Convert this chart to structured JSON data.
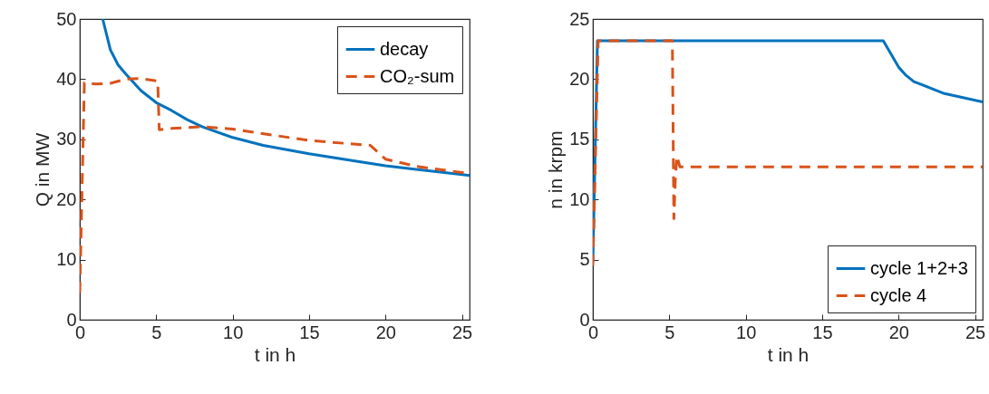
{
  "chart_data": [
    {
      "type": "line",
      "xlabel": "t in h",
      "ylabel": "Q in MW",
      "xlim": [
        0,
        25.5
      ],
      "xticks": [
        0,
        5,
        10,
        15,
        20,
        25
      ],
      "ylim": [
        0,
        50
      ],
      "yticks": [
        0,
        10,
        20,
        30,
        40,
        50
      ],
      "legend": "top right",
      "series": [
        {
          "name": "decay",
          "color": "#0072bd",
          "line_style": "solid",
          "x": [
            1.5,
            2,
            2.5,
            3,
            3.5,
            4,
            5,
            6,
            7,
            8,
            10,
            12,
            15,
            18,
            20,
            22,
            25.5
          ],
          "values": [
            50,
            44.9,
            42.4,
            40.9,
            39.5,
            38.1,
            36.1,
            34.8,
            33.3,
            32.1,
            30.3,
            29,
            27.6,
            26.4,
            25.6,
            25,
            24
          ]
        },
        {
          "name": "CO₂-sum",
          "color": "#d95319",
          "line_style": "dashed",
          "x": [
            0,
            0.3,
            1,
            2,
            3,
            4,
            5.1,
            5.2,
            6,
            8,
            10,
            15,
            19,
            20,
            22,
            25.5
          ],
          "values": [
            4.5,
            39.4,
            39.2,
            39.3,
            40,
            40.1,
            39.7,
            31.6,
            31.8,
            32.1,
            31.7,
            29.8,
            29,
            26.7,
            25.5,
            24.3
          ]
        }
      ]
    },
    {
      "type": "line",
      "xlabel": "t in h",
      "ylabel": "n in krpm",
      "xlim": [
        0,
        25.5
      ],
      "xticks": [
        0,
        5,
        10,
        15,
        20,
        25
      ],
      "ylim": [
        0,
        25
      ],
      "yticks": [
        0,
        5,
        10,
        15,
        20,
        25
      ],
      "legend": "bottom right",
      "series": [
        {
          "name": "cycle 1+2+3",
          "color": "#0072bd",
          "line_style": "solid",
          "x": [
            0,
            0.3,
            19,
            19.5,
            20,
            20.5,
            21,
            23,
            25.5
          ],
          "values": [
            4.8,
            23.2,
            23.2,
            22.1,
            21,
            20.3,
            19.8,
            18.8,
            18.1
          ]
        },
        {
          "name": "cycle 4",
          "color": "#d95319",
          "line_style": "dashed",
          "x": [
            0,
            0.35,
            5.2,
            5.3,
            5.4,
            5.5,
            5.7,
            25.5
          ],
          "values": [
            4.5,
            23.2,
            23.2,
            8.4,
            11.8,
            13.6,
            12.7,
            12.7
          ]
        }
      ]
    }
  ]
}
